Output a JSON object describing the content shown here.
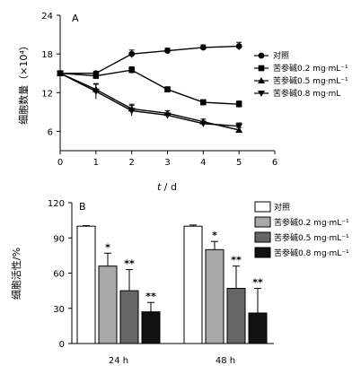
{
  "chart_data": [
    {
      "type": "line",
      "panel_label": "A",
      "ylabel": "细胞数量（×10⁴）",
      "xlabel_t": "t",
      "xlabel_sep": " / ",
      "xlabel_unit": "d",
      "xlim": [
        0,
        6
      ],
      "ylim": [
        3,
        24
      ],
      "xticks": [
        "0",
        "1",
        "2",
        "3",
        "4",
        "5",
        "6"
      ],
      "yticks": [
        "6",
        "12",
        "18",
        "24"
      ],
      "x": [
        0,
        1,
        2,
        3,
        4,
        5
      ],
      "series": [
        {
          "name": "对照",
          "marker": "circle",
          "values": [
            15,
            15,
            18,
            18.5,
            19,
            19.2
          ],
          "err": [
            0,
            0.3,
            0.6,
            0.4,
            0.4,
            0.6
          ]
        },
        {
          "name": "苦参碱0.2 mg·mL⁻¹",
          "marker": "square",
          "values": [
            15,
            14.6,
            15.5,
            12.5,
            10.5,
            10.2
          ],
          "err": [
            0,
            0.3,
            0.5,
            0.4,
            0.4,
            0.5
          ]
        },
        {
          "name": "苦参碱0.5 mg·mL⁻¹",
          "marker": "triangle-up",
          "values": [
            15,
            12.5,
            9.5,
            8.8,
            7.5,
            6.2
          ],
          "err": [
            0,
            0.8,
            0.7,
            0.4,
            0.4,
            0.4
          ]
        },
        {
          "name": "苦参碱0.8 mg·mL",
          "marker": "triangle-down",
          "values": [
            15,
            12.2,
            9.2,
            8.5,
            7.2,
            6.8
          ],
          "err": [
            0,
            1.2,
            0.8,
            0.3,
            0.3,
            0.5
          ]
        }
      ]
    },
    {
      "type": "bar",
      "panel_label": "B",
      "ylabel": "细胞活性/%",
      "ylim": [
        0,
        120
      ],
      "yticks": [
        "0",
        "30",
        "60",
        "90",
        "120"
      ],
      "categories": [
        "24 h",
        "48 h"
      ],
      "series": [
        {
          "name": "对照",
          "color": "#ffffff",
          "values": [
            100,
            100
          ],
          "err": [
            0.5,
            1
          ],
          "sig": [
            "",
            ""
          ]
        },
        {
          "name": "苦参碱0.2 mg·mL⁻¹",
          "color": "#a8a8a8",
          "values": [
            66,
            80
          ],
          "err": [
            11,
            7
          ],
          "sig": [
            "*",
            "*"
          ]
        },
        {
          "name": "苦参碱0.5 mg·mL⁻¹",
          "color": "#666666",
          "values": [
            45,
            47
          ],
          "err": [
            18,
            19
          ],
          "sig": [
            "**",
            "**"
          ]
        },
        {
          "name": "苦参碱0.8 mg·mL⁻¹",
          "color": "#111111",
          "values": [
            27,
            26
          ],
          "err": [
            8,
            21
          ],
          "sig": [
            "**",
            "**"
          ]
        }
      ]
    }
  ]
}
